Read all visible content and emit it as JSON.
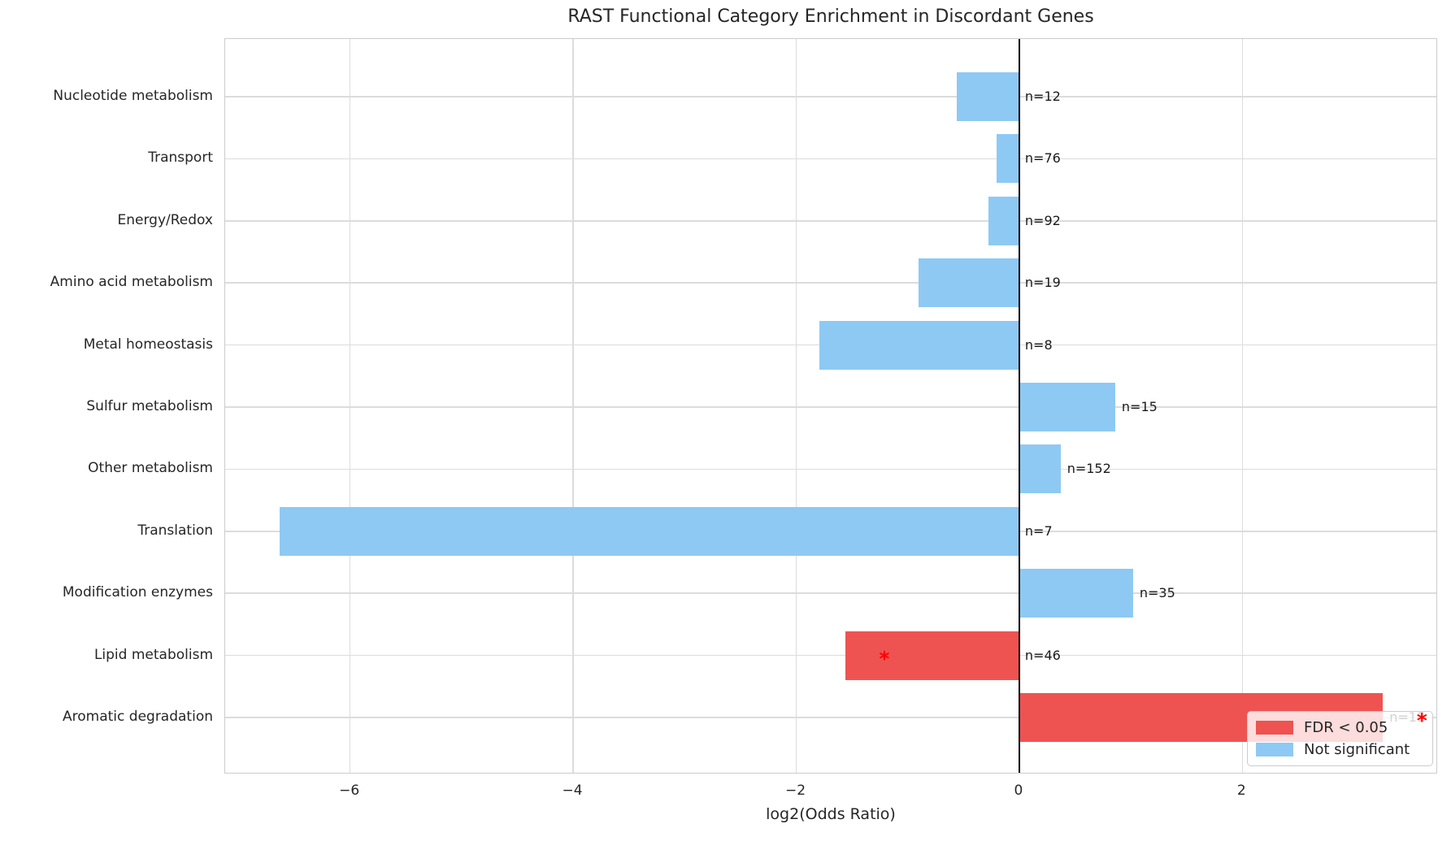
{
  "colors": {
    "significant": "#ee5351",
    "not_significant": "#8ec9f4",
    "asterisk": "#ff0000",
    "grid": "#dcdcdc",
    "spine": "#cccccc",
    "zero_line": "#000000",
    "text": "#262626"
  },
  "chart_data": {
    "type": "bar",
    "orientation": "horizontal",
    "title": "RAST Functional Category Enrichment in Discordant Genes",
    "xlabel": "log2(Odds Ratio)",
    "ylabel": "",
    "grid": true,
    "xlim": [
      -7.12,
      3.754
    ],
    "xticks": [
      -6,
      -4,
      -2,
      0,
      2
    ],
    "xtick_labels": [
      "−6",
      "−4",
      "−2",
      "0",
      "2"
    ],
    "categories": [
      "Nucleotide metabolism",
      "Transport",
      "Energy/Redox",
      "Amino acid metabolism",
      "Metal homeostasis",
      "Sulfur metabolism",
      "Other metabolism",
      "Translation",
      "Modification enzymes",
      "Lipid metabolism",
      "Aromatic degradation"
    ],
    "series": [
      {
        "name": "log2(Odds Ratio)",
        "values": [
          -0.56,
          -0.2,
          -0.28,
          -0.9,
          -1.79,
          0.86,
          0.37,
          -6.63,
          1.02,
          -1.56,
          3.26
        ]
      }
    ],
    "n_labels": [
      "n=12",
      "n=76",
      "n=92",
      "n=19",
      "n=8",
      "n=15",
      "n=152",
      "n=7",
      "n=35",
      "n=46",
      "n=11"
    ],
    "significant": [
      false,
      false,
      false,
      false,
      false,
      false,
      false,
      false,
      false,
      true,
      true
    ],
    "asterisk_marker": "*",
    "legend_position": "lower right",
    "legend_labels": [
      "FDR < 0.05",
      "Not significant"
    ]
  }
}
